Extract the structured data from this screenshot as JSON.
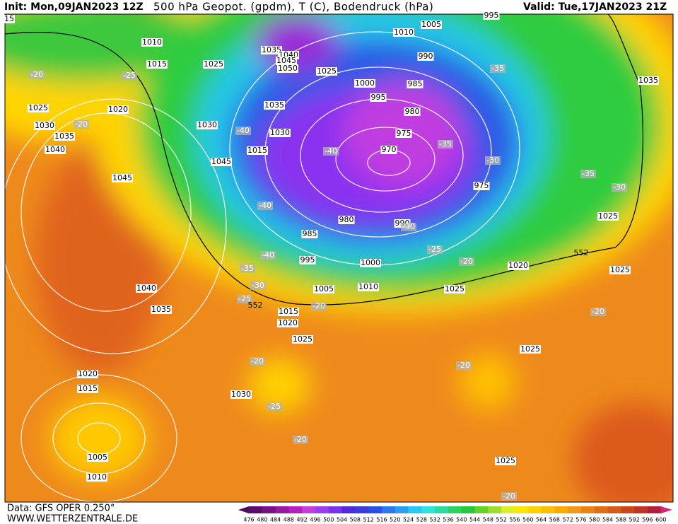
{
  "header": {
    "init": "Init: Mon,09JAN2023 12Z",
    "title": "500 hPa Geopot. (gpdm), T (C), Bodendruck (hPa)",
    "valid": "Valid: Tue,17JAN2023 21Z"
  },
  "footer": {
    "data_source": "Data: GFS OPER 0.250°",
    "website": "WWW.WETTERZENTRALE.DE"
  },
  "legend": {
    "labels": [
      476,
      480,
      484,
      488,
      492,
      496,
      500,
      504,
      508,
      512,
      516,
      520,
      524,
      528,
      532,
      536,
      540,
      544,
      548,
      552,
      556,
      560,
      564,
      568,
      572,
      576,
      580,
      584,
      588,
      592,
      596,
      600
    ],
    "colors": [
      "#4b0a5a",
      "#5c0c6e",
      "#7a0f8a",
      "#9a16a6",
      "#b81ec0",
      "#c83cdc",
      "#a03cf0",
      "#7832f0",
      "#5028e6",
      "#3c3cdc",
      "#2850e6",
      "#2878f0",
      "#28a0f0",
      "#28c8f0",
      "#28e6dc",
      "#28dca0",
      "#28d264",
      "#28c83c",
      "#64d228",
      "#a0dc28",
      "#dcf028",
      "#ffe600",
      "#ffd200",
      "#ffbe00",
      "#ffaa00",
      "#f59614",
      "#eb8214",
      "#e16e14",
      "#d75a14",
      "#cd4614",
      "#c33228",
      "#b41e3c",
      "#d22878"
    ]
  },
  "map": {
    "isobar_labels": [
      "15",
      "1010",
      "1015",
      "1025",
      "1025",
      "1010",
      "1005",
      "995",
      "990",
      "985",
      "1000",
      "995",
      "980",
      "975",
      "970",
      "975",
      "980",
      "985",
      "990",
      "995",
      "1000",
      "1005",
      "1010",
      "1015",
      "1020",
      "1025",
      "1030",
      "1035",
      "1040",
      "1045",
      "1040",
      "1035",
      "1030",
      "1025",
      "1020",
      "1035",
      "1040",
      "1045",
      "1050",
      "1035",
      "1030",
      "1015",
      "1045",
      "1030",
      "1035",
      "1025",
      "1025",
      "1020",
      "1025",
      "1025",
      "1025",
      "1020",
      "1015",
      "1005",
      "1010"
    ],
    "temperature_labels": [
      "-20",
      "-25",
      "-20",
      "-40",
      "-40",
      "-35",
      "-30",
      "-35",
      "-40",
      "-30",
      "-25",
      "-20",
      "-35",
      "-30",
      "-40",
      "-35",
      "-30",
      "-25",
      "-20",
      "-20",
      "-20",
      "-25",
      "-20",
      "-20",
      "-20"
    ],
    "height_labels": [
      "552",
      "552"
    ]
  }
}
